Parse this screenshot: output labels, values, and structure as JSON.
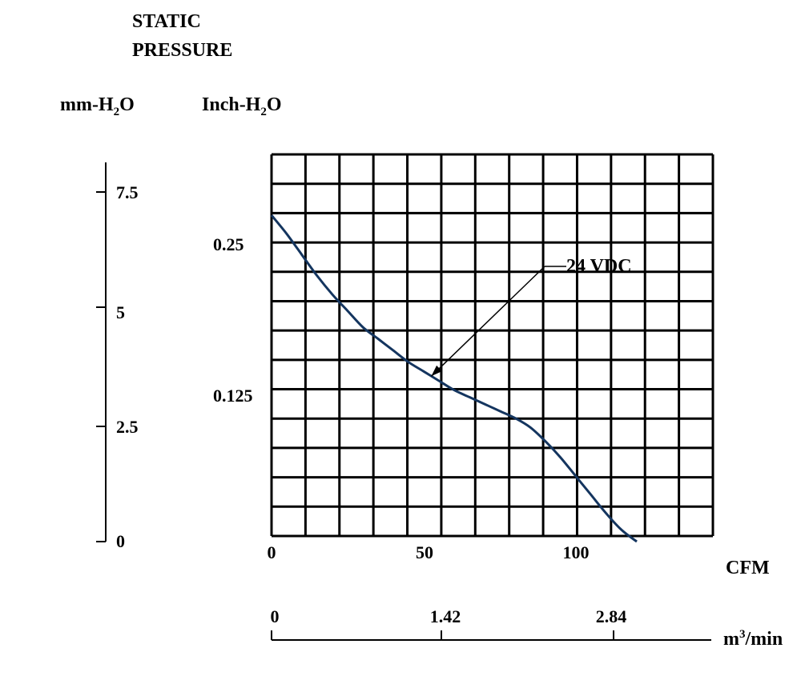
{
  "chart_data": {
    "type": "line",
    "title_line1": "STATIC",
    "title_line2": "PRESSURE",
    "y_left_unit": {
      "pre": "mm-H",
      "sub": "2",
      "post": "O"
    },
    "y_right_unit": {
      "pre": "Inch-H",
      "sub": "2",
      "post": "O"
    },
    "x_unit_cfm": "CFM",
    "x_unit_m3": {
      "pre": "m",
      "sup": "3",
      "post": "/min"
    },
    "ylim_mm": [
      0,
      8.33
    ],
    "xlim_cfm": [
      0,
      145
    ],
    "y_ticks_mm": [
      "7.5",
      "5",
      "2.5",
      "0"
    ],
    "y_ticks_inch": [
      "0.25",
      "0.125"
    ],
    "x_ticks_cfm": [
      "0",
      "50",
      "100"
    ],
    "x_ticks_m3": [
      "0",
      "1.42",
      "2.84"
    ],
    "grid": true,
    "series": [
      {
        "name": "24 VDC",
        "color": "#14355f",
        "x_cfm": [
          0,
          5,
          10,
          15,
          20,
          25,
          30,
          35,
          40,
          45,
          50,
          55,
          60,
          65,
          70,
          75,
          80,
          85,
          90,
          95,
          100,
          105,
          110,
          115,
          120
        ],
        "y_mm": [
          7.0,
          6.6,
          6.15,
          5.7,
          5.3,
          4.95,
          4.6,
          4.35,
          4.1,
          3.85,
          3.65,
          3.45,
          3.25,
          3.1,
          2.95,
          2.8,
          2.65,
          2.45,
          2.15,
          1.8,
          1.4,
          1.0,
          0.6,
          0.25,
          0.0
        ]
      }
    ],
    "annotation": {
      "text": "24 VDC",
      "point_cfm": 52.5,
      "point_mm": 3.55
    }
  }
}
